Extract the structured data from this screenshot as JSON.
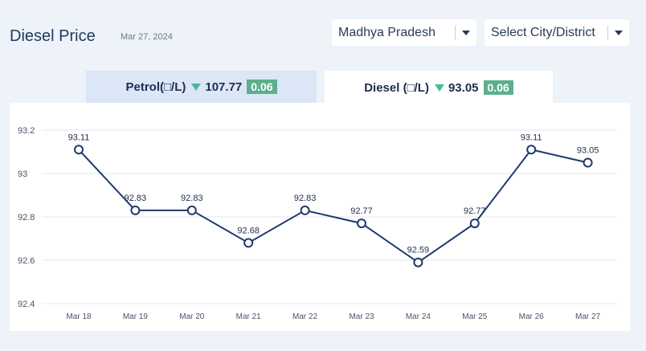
{
  "header": {
    "title": "Diesel Price",
    "date": "Mar 27, 2024"
  },
  "filters": {
    "state": "Madhya Pradesh",
    "city": "Select City/District"
  },
  "tabs": {
    "petrol": {
      "label": "Petrol(□/L)",
      "price": "107.77",
      "change": "0.06"
    },
    "diesel": {
      "label": "Diesel (□/L)",
      "price": "93.05",
      "change": "0.06"
    }
  },
  "colors": {
    "line": "#1f3a6d",
    "down_arrow": "#4ab89a",
    "badge": "#5cb08c"
  },
  "chart_data": {
    "type": "line",
    "categories": [
      "Mar 18",
      "Mar 19",
      "Mar 20",
      "Mar 21",
      "Mar 22",
      "Mar 23",
      "Mar 24",
      "Mar 25",
      "Mar 26",
      "Mar 27"
    ],
    "values": [
      93.11,
      92.83,
      92.83,
      92.68,
      92.83,
      92.77,
      92.59,
      92.77,
      93.11,
      93.05
    ],
    "data_labels": [
      "93.11",
      "92.83",
      "92.83",
      "92.68",
      "92.83",
      "92.77",
      "92.59",
      "92.77",
      "93.11",
      "93.05"
    ],
    "y_ticks": [
      "92.4",
      "92.6",
      "92.8",
      "93",
      "93.2"
    ],
    "ylim": [
      92.4,
      93.2
    ],
    "grid": true
  }
}
